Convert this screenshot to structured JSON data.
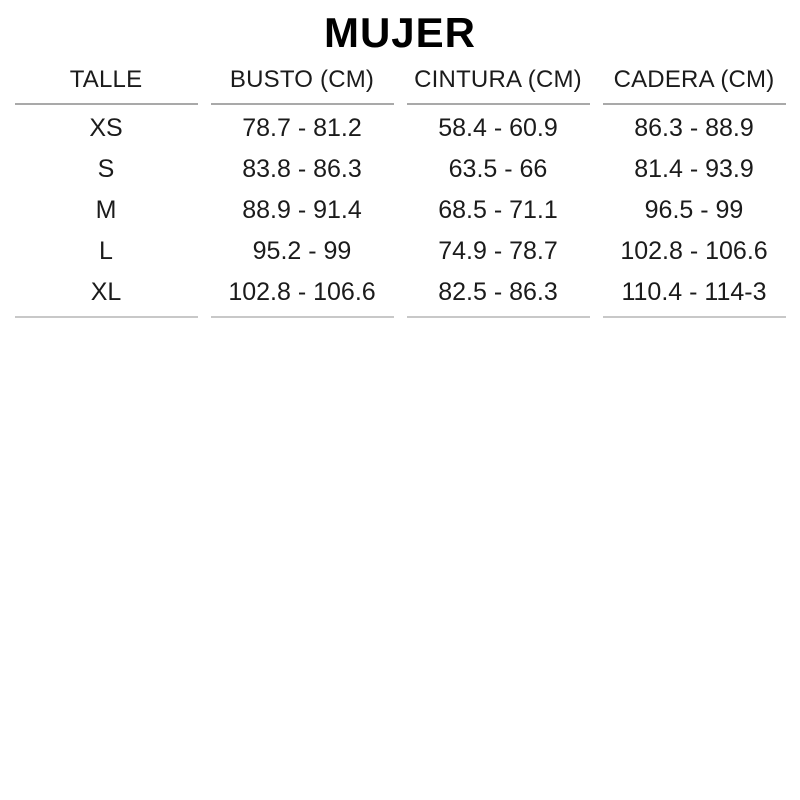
{
  "title": "MUJER",
  "chart_data": {
    "type": "table",
    "title": "MUJER",
    "columns": [
      "TALLE",
      "BUSTO (CM)",
      "CINTURA (CM)",
      "CADERA (CM)"
    ],
    "rows": [
      [
        "XS",
        "78.7 - 81.2",
        "58.4 - 60.9",
        "86.3 - 88.9"
      ],
      [
        "S",
        "83.8 - 86.3",
        "63.5 - 66",
        "81.4 - 93.9"
      ],
      [
        "M",
        "88.9 - 91.4",
        "68.5 - 71.1",
        "96.5 - 99"
      ],
      [
        "L",
        "95.2 - 99",
        "74.9 - 78.7",
        "102.8 - 106.6"
      ],
      [
        "XL",
        "102.8 - 106.6",
        "82.5 - 86.3",
        "110.4 - 114-3"
      ]
    ],
    "layout": {
      "grid": "horizontal rules under header row and under last row only",
      "rule_style": "per-column segments with gaps between columns"
    }
  },
  "colors": {
    "background": "#ffffff",
    "title_text": "#000000",
    "body_text": "#1b1b1b",
    "header_rule": "#a9a9a9",
    "bottom_rule": "#c8c8c8"
  }
}
